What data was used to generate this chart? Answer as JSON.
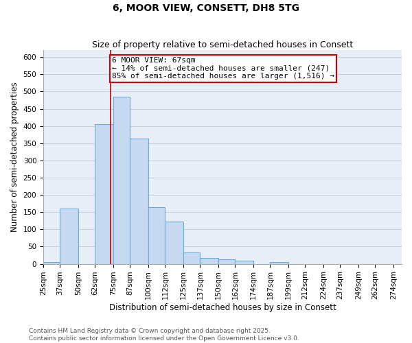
{
  "title": "6, MOOR VIEW, CONSETT, DH8 5TG",
  "subtitle": "Size of property relative to semi-detached houses in Consett",
  "xlabel": "Distribution of semi-detached houses by size in Consett",
  "ylabel": "Number of semi-detached properties",
  "annotation_title": "6 MOOR VIEW: 67sqm",
  "annotation_line1": "← 14% of semi-detached houses are smaller (247)",
  "annotation_line2": "85% of semi-detached houses are larger (1,516) →",
  "footnote1": "Contains HM Land Registry data © Crown copyright and database right 2025.",
  "footnote2": "Contains public sector information licensed under the Open Government Licence v3.0.",
  "bin_edges": [
    19,
    31,
    44,
    56,
    69,
    81,
    94,
    106,
    119,
    131,
    144,
    156,
    169,
    181,
    194,
    206,
    219,
    231,
    244,
    256,
    269
  ],
  "bar_heights": [
    5,
    160,
    0,
    405,
    485,
    363,
    165,
    123,
    33,
    18,
    13,
    10,
    0,
    5,
    0,
    0,
    0,
    0,
    0,
    0
  ],
  "tick_labels": [
    "25sqm",
    "37sqm",
    "50sqm",
    "62sqm",
    "75sqm",
    "87sqm",
    "100sqm",
    "112sqm",
    "125sqm",
    "137sqm",
    "150sqm",
    "162sqm",
    "174sqm",
    "187sqm",
    "199sqm",
    "212sqm",
    "224sqm",
    "237sqm",
    "249sqm",
    "262sqm",
    "274sqm"
  ],
  "red_line_x": 67,
  "ylim": [
    0,
    620
  ],
  "xlim": [
    19,
    275
  ],
  "bar_color": "#c6d9f1",
  "bar_edge_color": "#6aaed6",
  "red_line_color": "#cc0000",
  "annotation_box_edge": "#cc0000",
  "background_color": "#ffffff",
  "plot_bg_color": "#e8eef8",
  "grid_color": "#c8d0dc",
  "title_fontsize": 10,
  "subtitle_fontsize": 9,
  "axis_label_fontsize": 8.5,
  "tick_fontsize": 7.5,
  "annotation_fontsize": 8,
  "footnote_fontsize": 6.5
}
